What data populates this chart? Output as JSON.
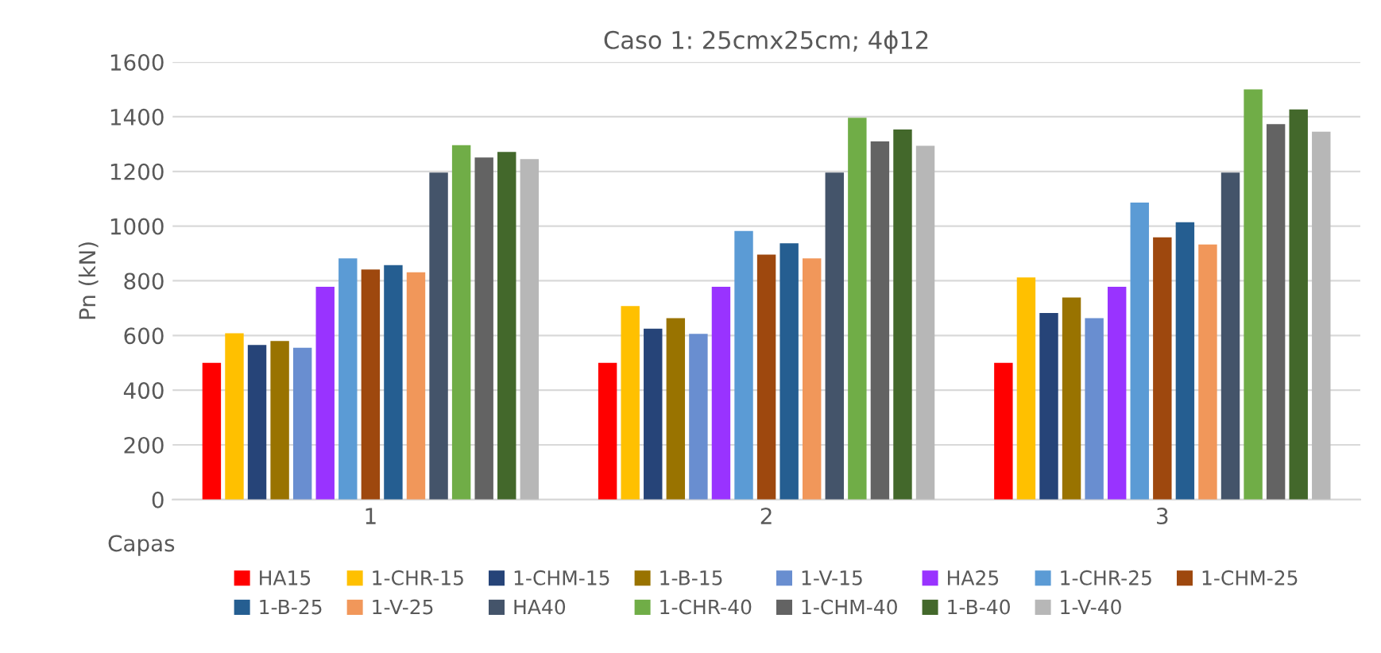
{
  "chart_data": {
    "type": "bar",
    "title": "Caso 1: 25cmx25cm; 4ϕ12",
    "xlabel": "Capas",
    "ylabel": "Pn (kN)",
    "categories": [
      "1",
      "2",
      "3"
    ],
    "ylim": [
      0,
      1600
    ],
    "yticks": [
      0,
      200,
      400,
      600,
      800,
      1000,
      1200,
      1400,
      1600
    ],
    "grid": "y",
    "legend": "bottom",
    "series": [
      {
        "name": "HA15",
        "color": "#ff0000",
        "values": [
          500,
          500,
          500
        ]
      },
      {
        "name": "1-CHR-15",
        "color": "#ffc000",
        "values": [
          608,
          708,
          812
        ]
      },
      {
        "name": "1-CHM-15",
        "color": "#264478",
        "values": [
          565,
          625,
          682
        ]
      },
      {
        "name": "1-B-15",
        "color": "#997300",
        "values": [
          580,
          663,
          739
        ]
      },
      {
        "name": "1-V-15",
        "color": "#698ed0",
        "values": [
          555,
          606,
          663
        ]
      },
      {
        "name": "HA25",
        "color": "#9933ff",
        "values": [
          778,
          778,
          778
        ]
      },
      {
        "name": "1-CHR-25",
        "color": "#5b9bd5",
        "values": [
          882,
          982,
          1086
        ]
      },
      {
        "name": "1-CHM-25",
        "color": "#9e480e",
        "values": [
          841,
          896,
          959
        ]
      },
      {
        "name": "1-B-25",
        "color": "#255e91",
        "values": [
          857,
          937,
          1014
        ]
      },
      {
        "name": "1-V-25",
        "color": "#f1975a",
        "values": [
          831,
          882,
          933
        ]
      },
      {
        "name": "HA40",
        "color": "#44546a",
        "values": [
          1196,
          1196,
          1196
        ]
      },
      {
        "name": "1-CHR-40",
        "color": "#70ad47",
        "values": [
          1296,
          1396,
          1500
        ]
      },
      {
        "name": "1-CHM-40",
        "color": "#636363",
        "values": [
          1251,
          1310,
          1373
        ]
      },
      {
        "name": "1-B-40",
        "color": "#43682b",
        "values": [
          1271,
          1353,
          1427
        ]
      },
      {
        "name": "1-V-40",
        "color": "#b7b7b7",
        "values": [
          1245,
          1294,
          1345
        ]
      }
    ]
  }
}
